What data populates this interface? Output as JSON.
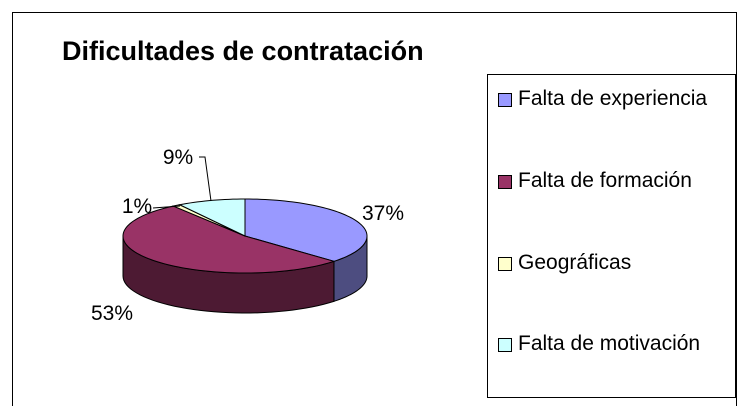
{
  "chart_data": {
    "type": "pie",
    "title": "Dificultades de contratación",
    "categories": [
      "Falta de experiencia",
      "Falta de formación",
      "Geográficas",
      "Falta de motivación"
    ],
    "values": [
      37,
      53,
      1,
      9
    ],
    "value_labels": [
      "37%",
      "53%",
      "1%",
      "9%"
    ],
    "colors": [
      "#9999ff",
      "#993366",
      "#ffffcc",
      "#ccffff"
    ],
    "legend": "right"
  }
}
